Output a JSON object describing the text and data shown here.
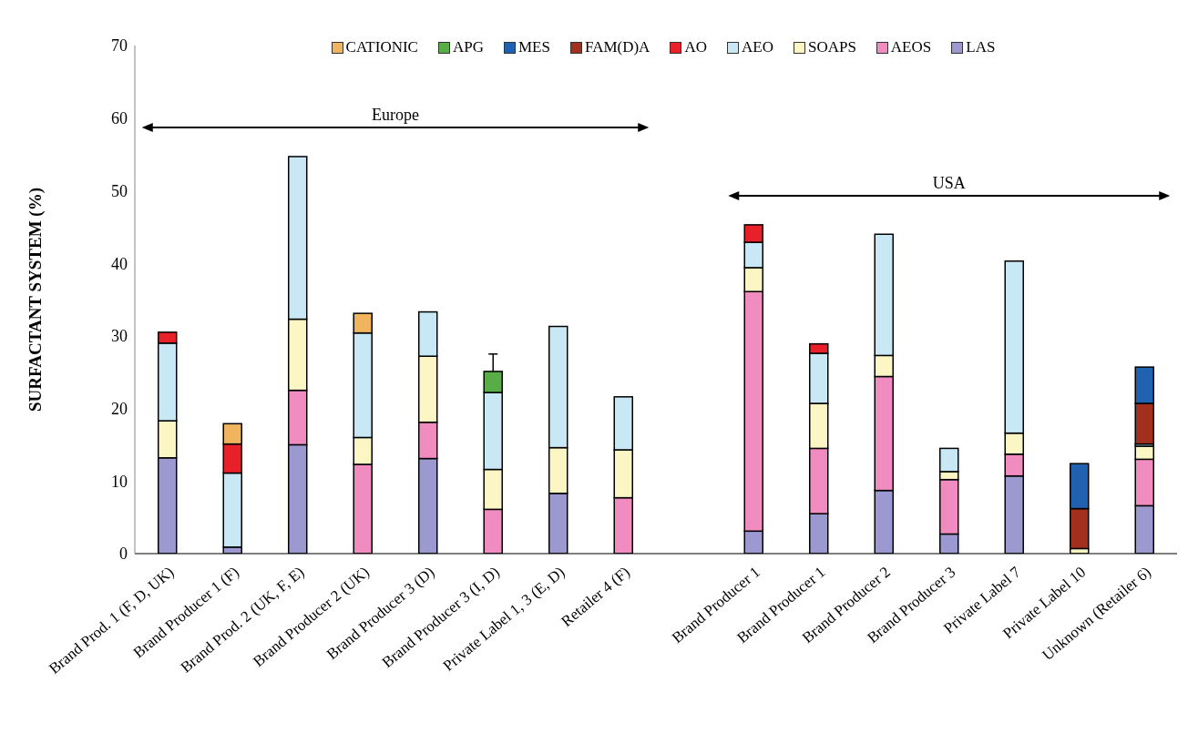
{
  "chart_data": {
    "type": "bar",
    "stacked": true,
    "ylabel": "SURFACTANT SYSTEM (%)",
    "categories": [
      "Brand Prod. 1 (F, D, UK)",
      "Brand Producer 1 (F)",
      "Brand Prod. 2 (UK, F, E)",
      "Brand Producer 2 (UK)",
      "Brand Producer 3 (D)",
      "Brand Producer 3 (I, D)",
      "Private Label 1, 3 (E, D)",
      "Retailer 4 (F)",
      null,
      "Brand Producer 1",
      "Brand Producer 1",
      "Brand Producer 2",
      "Brand Producer 3",
      "Private Label 7",
      "Private Label 10",
      "Unknown (Retailer 6)"
    ],
    "series": [
      {
        "name": "LAS",
        "color": "#9b99d0",
        "values": [
          13.2,
          0.9,
          15.0,
          null,
          13.1,
          null,
          8.3,
          null,
          null,
          3.1,
          5.5,
          8.7,
          2.7,
          10.7,
          null,
          6.6
        ]
      },
      {
        "name": "AEOS",
        "color": "#f08cbf",
        "values": [
          null,
          null,
          7.5,
          12.3,
          5.0,
          6.1,
          null,
          7.7,
          null,
          33.0,
          9.0,
          15.7,
          7.5,
          3.0,
          null,
          6.4
        ]
      },
      {
        "name": "SOAPS",
        "color": "#fbf6c4",
        "values": [
          5.1,
          null,
          9.8,
          3.7,
          9.1,
          5.5,
          6.3,
          6.6,
          null,
          3.3,
          6.2,
          2.9,
          1.1,
          2.9,
          0.7,
          1.8
        ]
      },
      {
        "name": "AEO",
        "color": "#c9e8f5",
        "values": [
          10.7,
          10.2,
          22.4,
          14.4,
          6.1,
          10.6,
          16.7,
          7.3,
          null,
          3.5,
          6.9,
          16.7,
          3.2,
          23.7,
          null,
          0.3
        ]
      },
      {
        "name": "AO",
        "color": "#e8202a",
        "values": [
          1.5,
          4.0,
          null,
          null,
          null,
          null,
          null,
          null,
          null,
          2.4,
          1.3,
          null,
          null,
          null,
          null,
          null
        ]
      },
      {
        "name": "FAM(D)A",
        "color": "#a3301f",
        "values": [
          null,
          null,
          null,
          null,
          null,
          null,
          null,
          null,
          null,
          null,
          null,
          null,
          null,
          null,
          5.5,
          5.6
        ]
      },
      {
        "name": "MES",
        "color": "#2162b0",
        "values": [
          null,
          null,
          null,
          null,
          null,
          null,
          null,
          null,
          null,
          null,
          null,
          null,
          null,
          null,
          6.2,
          5.0
        ]
      },
      {
        "name": "APG",
        "color": "#58ad47",
        "values": [
          null,
          null,
          null,
          null,
          null,
          2.9,
          null,
          null,
          null,
          null,
          null,
          null,
          null,
          null,
          null,
          null
        ],
        "errors": [
          null,
          null,
          null,
          null,
          null,
          [
            25.1,
            27.5
          ],
          null,
          null,
          null,
          null,
          null,
          null,
          null,
          null,
          null,
          null
        ]
      },
      {
        "name": "CATIONIC",
        "color": "#f0b45e",
        "values": [
          null,
          2.8,
          null,
          2.7,
          null,
          null,
          null,
          null,
          null,
          null,
          null,
          null,
          null,
          null,
          null,
          null
        ]
      }
    ],
    "ylim": [
      0,
      70
    ],
    "yticks": [
      0,
      10,
      20,
      30,
      40,
      50,
      60,
      70
    ],
    "grid": false,
    "legend": "top",
    "annotations": [
      "Europe",
      "USA"
    ]
  }
}
